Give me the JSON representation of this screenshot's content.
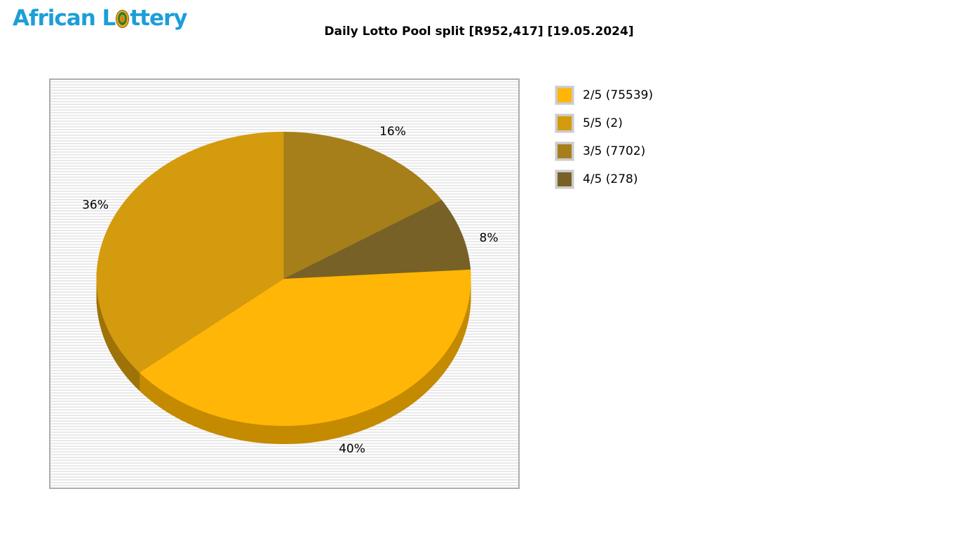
{
  "logo": {
    "text_before": "African L",
    "text_after": "ttery"
  },
  "header": {
    "title": "Daily Lotto Pool split [R952,417] [19.05.2024]"
  },
  "chart_data": {
    "type": "pie",
    "title": "Daily Lotto Pool split [R952,417] [19.05.2024]",
    "pool_total": "R952,417",
    "draw_date": "19.05.2024",
    "style": "3d-pie",
    "legend_position": "right",
    "start_angle_deg": 0,
    "slices": [
      {
        "division": "3/5",
        "winners": 7702,
        "percent": 16,
        "pct_label": "16%",
        "color": "#A67F1B",
        "dark": "#7C5D13"
      },
      {
        "division": "4/5",
        "winners": 278,
        "percent": 8,
        "pct_label": "8%",
        "color": "#776127",
        "dark": "#514218"
      },
      {
        "division": "2/5",
        "winners": 75539,
        "percent": 40,
        "pct_label": "40%",
        "color": "#FFB606",
        "dark": "#C48A00"
      },
      {
        "division": "5/5",
        "winners": 2,
        "percent": 36,
        "pct_label": "36%",
        "color": "#D49B0E",
        "dark": "#9E7309"
      }
    ]
  },
  "legend": {
    "items": [
      {
        "label": "2/5 (75539)",
        "color": "#FFB606"
      },
      {
        "label": "5/5 (2)",
        "color": "#D49B0E"
      },
      {
        "label": "3/5 (7702)",
        "color": "#A67F1B"
      },
      {
        "label": "4/5 (278)",
        "color": "#776127"
      }
    ]
  }
}
